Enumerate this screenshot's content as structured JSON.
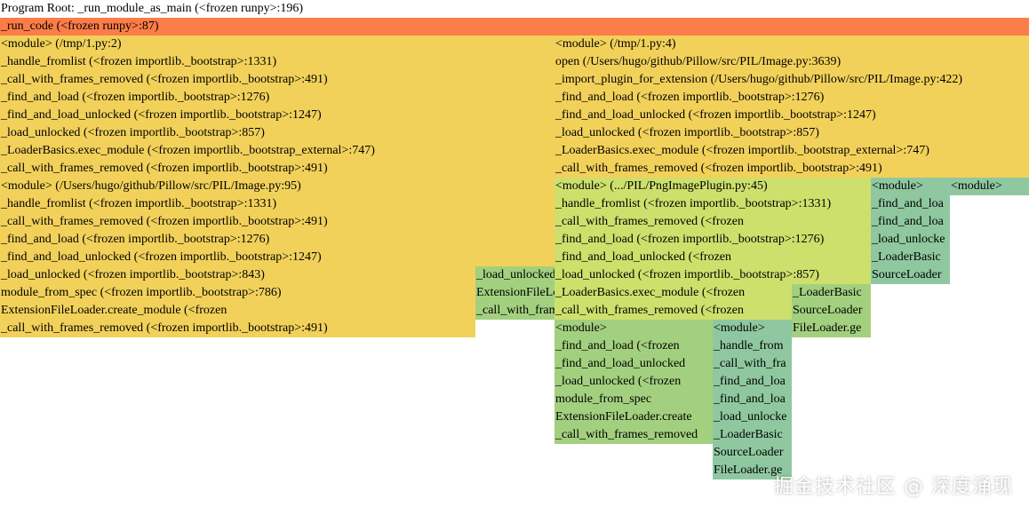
{
  "flamegraph": {
    "frames": [
      {
        "label": "Program Root: _run_module_as_main (<frozen runpy>:196)",
        "depth": 0,
        "start": 0,
        "end": 1,
        "color": "#ffffff"
      },
      {
        "label": "_run_code (<frozen runpy>:87)",
        "depth": 1,
        "start": 0,
        "end": 1,
        "color": "#fd7d48"
      },
      {
        "label": "<module> (/tmp/1.py:2)",
        "depth": 2,
        "start": 0,
        "end": 0.5385,
        "color": "#f2d15b"
      },
      {
        "label": "_handle_fromlist (<frozen importlib._bootstrap>:1331)",
        "depth": 3,
        "start": 0,
        "end": 0.5385,
        "color": "#f2d15b"
      },
      {
        "label": "_call_with_frames_removed (<frozen importlib._bootstrap>:491)",
        "depth": 4,
        "start": 0,
        "end": 0.5385,
        "color": "#f2d15b"
      },
      {
        "label": "_find_and_load (<frozen importlib._bootstrap>:1276)",
        "depth": 5,
        "start": 0,
        "end": 0.5385,
        "color": "#f2d15b"
      },
      {
        "label": "_find_and_load_unlocked (<frozen importlib._bootstrap>:1247)",
        "depth": 6,
        "start": 0,
        "end": 0.5385,
        "color": "#f2d15b"
      },
      {
        "label": "_load_unlocked (<frozen importlib._bootstrap>:857)",
        "depth": 7,
        "start": 0,
        "end": 0.5385,
        "color": "#f2d15b"
      },
      {
        "label": "_LoaderBasics.exec_module (<frozen importlib._bootstrap_external>:747)",
        "depth": 8,
        "start": 0,
        "end": 0.5385,
        "color": "#f2d15b"
      },
      {
        "label": "_call_with_frames_removed (<frozen importlib._bootstrap>:491)",
        "depth": 9,
        "start": 0,
        "end": 0.5385,
        "color": "#f2d15b"
      },
      {
        "label": "<module> (/Users/hugo/github/Pillow/src/PIL/Image.py:95)",
        "depth": 10,
        "start": 0,
        "end": 0.5385,
        "color": "#f2d15b"
      },
      {
        "label": "_handle_fromlist (<frozen importlib._bootstrap>:1331)",
        "depth": 11,
        "start": 0,
        "end": 0.5385,
        "color": "#f2d15b"
      },
      {
        "label": "_call_with_frames_removed (<frozen importlib._bootstrap>:491)",
        "depth": 12,
        "start": 0,
        "end": 0.5385,
        "color": "#f2d15b"
      },
      {
        "label": "_find_and_load (<frozen importlib._bootstrap>:1276)",
        "depth": 13,
        "start": 0,
        "end": 0.5385,
        "color": "#f2d15b"
      },
      {
        "label": "_find_and_load_unlocked (<frozen importlib._bootstrap>:1247)",
        "depth": 14,
        "start": 0,
        "end": 0.5385,
        "color": "#f2d15b"
      },
      {
        "label": "_load_unlocked (<frozen importlib._bootstrap>:843)",
        "depth": 15,
        "start": 0,
        "end": 0.462,
        "color": "#f2d15b"
      },
      {
        "label": "module_from_spec (<frozen importlib._bootstrap>:786)",
        "depth": 16,
        "start": 0,
        "end": 0.462,
        "color": "#f2d15b"
      },
      {
        "label": "ExtensionFileLoader.create_module (<frozen",
        "depth": 17,
        "start": 0,
        "end": 0.462,
        "color": "#f2d15b"
      },
      {
        "label": "_call_with_frames_removed (<frozen importlib._bootstrap>:491)",
        "depth": 18,
        "start": 0,
        "end": 0.462,
        "color": "#f2d15b"
      },
      {
        "label": "_load_unlocked",
        "depth": 15,
        "start": 0.462,
        "end": 0.5385,
        "color": "#a3d07f"
      },
      {
        "label": "ExtensionFileLoader",
        "depth": 16,
        "start": 0.462,
        "end": 0.5385,
        "color": "#a3d07f"
      },
      {
        "label": "_call_with_frames_removed",
        "depth": 17,
        "start": 0.462,
        "end": 0.5385,
        "color": "#a3d07f"
      },
      {
        "label": "<module> (/tmp/1.py:4)",
        "depth": 2,
        "start": 0.5385,
        "end": 1,
        "color": "#f2d15b"
      },
      {
        "label": "open (/Users/hugo/github/Pillow/src/PIL/Image.py:3639)",
        "depth": 3,
        "start": 0.5385,
        "end": 1,
        "color": "#f2d15b"
      },
      {
        "label": "_import_plugin_for_extension (/Users/hugo/github/Pillow/src/PIL/Image.py:422)",
        "depth": 4,
        "start": 0.5385,
        "end": 1,
        "color": "#f2d15b"
      },
      {
        "label": "_find_and_load (<frozen importlib._bootstrap>:1276)",
        "depth": 5,
        "start": 0.5385,
        "end": 1,
        "color": "#f2d15b"
      },
      {
        "label": "_find_and_load_unlocked (<frozen importlib._bootstrap>:1247)",
        "depth": 6,
        "start": 0.5385,
        "end": 1,
        "color": "#f2d15b"
      },
      {
        "label": "_load_unlocked (<frozen importlib._bootstrap>:857)",
        "depth": 7,
        "start": 0.5385,
        "end": 1,
        "color": "#f2d15b"
      },
      {
        "label": "_LoaderBasics.exec_module (<frozen importlib._bootstrap_external>:747)",
        "depth": 8,
        "start": 0.5385,
        "end": 1,
        "color": "#f2d15b"
      },
      {
        "label": "_call_with_frames_removed (<frozen importlib._bootstrap>:491)",
        "depth": 9,
        "start": 0.5385,
        "end": 1,
        "color": "#f2d15b"
      },
      {
        "label": "<module> (.../PIL/PngImagePlugin.py:45)",
        "depth": 10,
        "start": 0.5385,
        "end": 0.8463,
        "color": "#cde06c"
      },
      {
        "label": "_handle_fromlist (<frozen importlib._bootstrap>:1331)",
        "depth": 11,
        "start": 0.5385,
        "end": 0.8463,
        "color": "#cde06c"
      },
      {
        "label": "_call_with_frames_removed (<frozen",
        "depth": 12,
        "start": 0.5385,
        "end": 0.8463,
        "color": "#cde06c"
      },
      {
        "label": "_find_and_load (<frozen importlib._bootstrap>:1276)",
        "depth": 13,
        "start": 0.5385,
        "end": 0.8463,
        "color": "#cde06c"
      },
      {
        "label": "_find_and_load_unlocked (<frozen",
        "depth": 14,
        "start": 0.5385,
        "end": 0.8463,
        "color": "#cde06c"
      },
      {
        "label": "_load_unlocked (<frozen importlib._bootstrap>:857)",
        "depth": 15,
        "start": 0.5385,
        "end": 0.8463,
        "color": "#cde06c"
      },
      {
        "label": "_LoaderBasics.exec_module (<frozen",
        "depth": 16,
        "start": 0.5385,
        "end": 0.7694,
        "color": "#cde06c"
      },
      {
        "label": "_call_with_frames_removed (<frozen",
        "depth": 17,
        "start": 0.5385,
        "end": 0.7694,
        "color": "#cde06c"
      },
      {
        "label": "_LoaderBasic",
        "depth": 16,
        "start": 0.7694,
        "end": 0.8463,
        "color": "#a3d07f"
      },
      {
        "label": "SourceLoader",
        "depth": 17,
        "start": 0.7694,
        "end": 0.8463,
        "color": "#a3d07f"
      },
      {
        "label": "FileLoader.ge",
        "depth": 18,
        "start": 0.7694,
        "end": 0.8463,
        "color": "#a3d07f"
      },
      {
        "label": "<module>",
        "depth": 18,
        "start": 0.5385,
        "end": 0.6922,
        "color": "#a3d07f"
      },
      {
        "label": "_find_and_load (<frozen",
        "depth": 19,
        "start": 0.5385,
        "end": 0.6922,
        "color": "#a3d07f"
      },
      {
        "label": "_find_and_load_unlocked",
        "depth": 20,
        "start": 0.5385,
        "end": 0.6922,
        "color": "#a3d07f"
      },
      {
        "label": "_load_unlocked (<frozen",
        "depth": 21,
        "start": 0.5385,
        "end": 0.6922,
        "color": "#a3d07f"
      },
      {
        "label": "module_from_spec",
        "depth": 22,
        "start": 0.5385,
        "end": 0.6922,
        "color": "#a3d07f"
      },
      {
        "label": "ExtensionFileLoader.create",
        "depth": 23,
        "start": 0.5385,
        "end": 0.6922,
        "color": "#a3d07f"
      },
      {
        "label": "_call_with_frames_removed",
        "depth": 24,
        "start": 0.5385,
        "end": 0.6922,
        "color": "#a3d07f"
      },
      {
        "label": "<module>",
        "depth": 18,
        "start": 0.6922,
        "end": 0.7694,
        "color": "#8fc8a0"
      },
      {
        "label": "_handle_from",
        "depth": 19,
        "start": 0.6922,
        "end": 0.7694,
        "color": "#8fc8a0"
      },
      {
        "label": "_call_with_fra",
        "depth": 20,
        "start": 0.6922,
        "end": 0.7694,
        "color": "#8fc8a0"
      },
      {
        "label": "_find_and_loa",
        "depth": 21,
        "start": 0.6922,
        "end": 0.7694,
        "color": "#8fc8a0"
      },
      {
        "label": "_find_and_loa",
        "depth": 22,
        "start": 0.6922,
        "end": 0.7694,
        "color": "#8fc8a0"
      },
      {
        "label": "_load_unlocke",
        "depth": 23,
        "start": 0.6922,
        "end": 0.7694,
        "color": "#8fc8a0"
      },
      {
        "label": "_LoaderBasic",
        "depth": 24,
        "start": 0.6922,
        "end": 0.7694,
        "color": "#8fc8a0"
      },
      {
        "label": "SourceLoader",
        "depth": 25,
        "start": 0.6922,
        "end": 0.7694,
        "color": "#8fc8a0"
      },
      {
        "label": "FileLoader.ge",
        "depth": 26,
        "start": 0.6922,
        "end": 0.7694,
        "color": "#8fc8a0"
      },
      {
        "label": "<module>",
        "depth": 10,
        "start": 0.8463,
        "end": 0.9232,
        "color": "#8fc8a0"
      },
      {
        "label": "_find_and_loa",
        "depth": 11,
        "start": 0.8463,
        "end": 0.9232,
        "color": "#8fc8a0"
      },
      {
        "label": "_find_and_loa",
        "depth": 12,
        "start": 0.8463,
        "end": 0.9232,
        "color": "#8fc8a0"
      },
      {
        "label": "_load_unlocke",
        "depth": 13,
        "start": 0.8463,
        "end": 0.9232,
        "color": "#8fc8a0"
      },
      {
        "label": "_LoaderBasic",
        "depth": 14,
        "start": 0.8463,
        "end": 0.9232,
        "color": "#8fc8a0"
      },
      {
        "label": "SourceLoader",
        "depth": 15,
        "start": 0.8463,
        "end": 0.9232,
        "color": "#8fc8a0"
      },
      {
        "label": "<module>",
        "depth": 10,
        "start": 0.9232,
        "end": 1,
        "color": "#8fc8a0"
      }
    ]
  },
  "watermark": "掘金技术社区 @ 深度涌现"
}
